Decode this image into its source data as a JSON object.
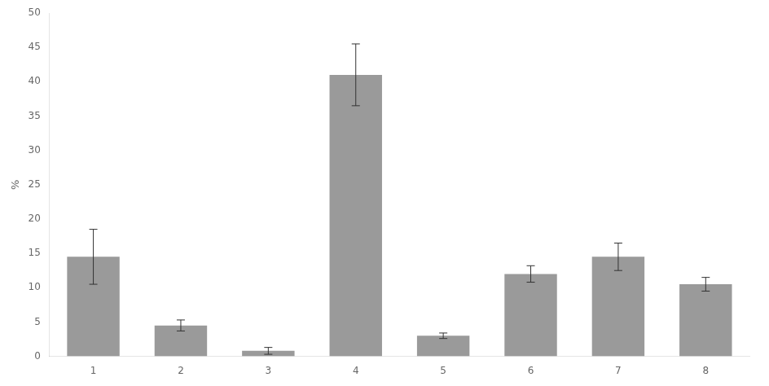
{
  "chart_data": {
    "type": "bar",
    "categories": [
      "1",
      "2",
      "3",
      "4",
      "5",
      "6",
      "7",
      "8"
    ],
    "values": [
      14.5,
      4.5,
      0.8,
      41.0,
      3.0,
      12.0,
      14.5,
      10.5
    ],
    "errors": [
      4.0,
      0.8,
      0.5,
      4.5,
      0.4,
      1.2,
      2.0,
      1.0
    ],
    "color": "#9A9A9A",
    "ylabel": "%",
    "ylim": [
      0,
      50
    ],
    "yticks": [
      0,
      5,
      10,
      15,
      20,
      25,
      30,
      35,
      40,
      45,
      50
    ],
    "grid": false
  }
}
